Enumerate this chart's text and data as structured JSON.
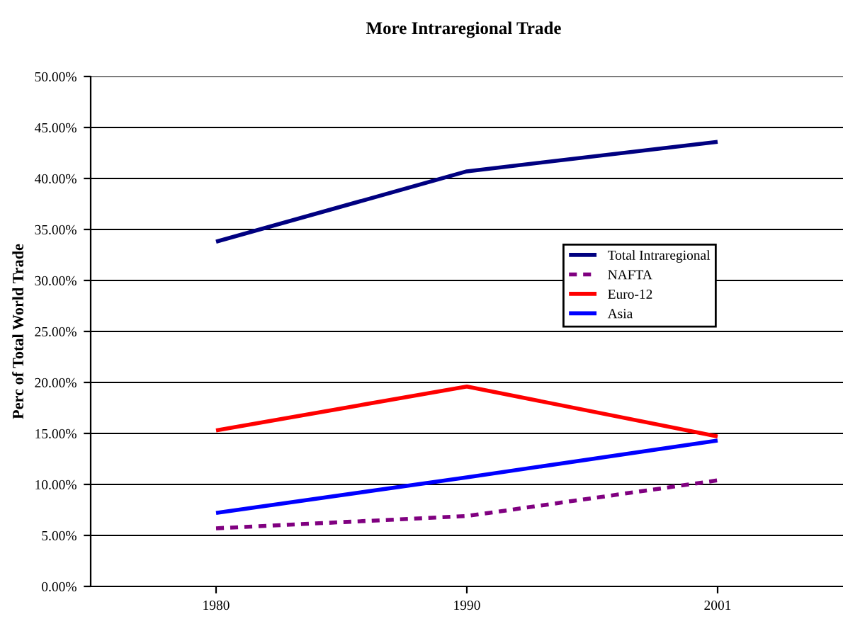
{
  "chart_data": {
    "type": "line",
    "title": "More Intraregional Trade",
    "ylabel": "Perc of Total World Trade",
    "categories": [
      "1980",
      "1990",
      "2001"
    ],
    "series": [
      {
        "name": "Total Intraregional",
        "color": "#000080",
        "values": [
          33.8,
          40.7,
          43.6
        ]
      },
      {
        "name": "NAFTA",
        "color": "#800080",
        "values": [
          5.7,
          6.9,
          10.4
        ],
        "line_style": "dashed"
      },
      {
        "name": "Euro-12",
        "color": "#ff0000",
        "values": [
          15.3,
          19.6,
          14.7
        ]
      },
      {
        "name": "Asia",
        "color": "#0000ff",
        "values": [
          7.2,
          10.7,
          14.3
        ]
      }
    ],
    "ylim": [
      0,
      50
    ],
    "yticks": [
      {
        "value": 0,
        "label": "0.00%"
      },
      {
        "value": 5,
        "label": "5.00%"
      },
      {
        "value": 10,
        "label": "10.00%"
      },
      {
        "value": 15,
        "label": "15.00%"
      },
      {
        "value": 20,
        "label": "20.00%"
      },
      {
        "value": 25,
        "label": "25.00%"
      },
      {
        "value": 30,
        "label": "30.00%"
      },
      {
        "value": 35,
        "label": "35.00%"
      },
      {
        "value": 40,
        "label": "40.00%"
      },
      {
        "value": 45,
        "label": "45.00%"
      },
      {
        "value": 50,
        "label": "50.00%"
      }
    ],
    "grid": "y",
    "legend": "center right",
    "marker": "none",
    "line_style": "solid"
  }
}
